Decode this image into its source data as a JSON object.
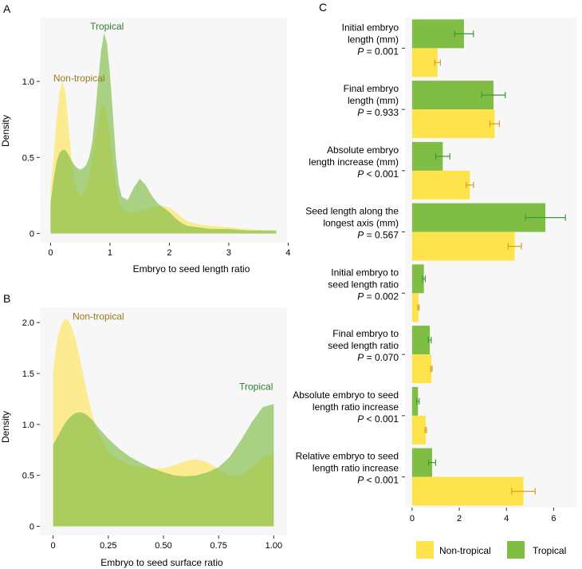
{
  "colors": {
    "non_tropical": "#FFE34D",
    "tropical": "#7FBD45",
    "non_tropical_label": "#9A7A1C",
    "tropical_label": "#2E7D2E",
    "panel_bg": "#F7F7F7",
    "nt_err": "#D4A020",
    "tr_err": "#3C9A3C"
  },
  "chart_data": [
    {
      "panel_label": "A",
      "type": "area",
      "xlabel": "Embryo to seed length ratio",
      "ylabel": "Density",
      "xlim": [
        -0.18,
        3.98
      ],
      "ylim": [
        -0.06,
        1.42
      ],
      "xticks": [
        0,
        1,
        2,
        3,
        4
      ],
      "xtick_labels": [
        "0",
        "1",
        "2",
        "3",
        "4"
      ],
      "yticks": [
        0,
        0.5,
        1.0
      ],
      "ytick_labels": [
        "0",
        "0.5",
        "1.0"
      ],
      "annotations": [
        {
          "text": "Tropical",
          "series": "Tropical",
          "x": 0.95,
          "y": 1.34
        },
        {
          "text": "Non-tropical",
          "series": "Non-tropical",
          "x": 0.48,
          "y": 1.0
        }
      ],
      "series": [
        {
          "name": "Non-tropical",
          "x": [
            0,
            0.05,
            0.1,
            0.15,
            0.2,
            0.25,
            0.3,
            0.35,
            0.4,
            0.45,
            0.5,
            0.55,
            0.6,
            0.65,
            0.7,
            0.75,
            0.8,
            0.85,
            0.9,
            0.95,
            1.0,
            1.05,
            1.1,
            1.15,
            1.2,
            1.3,
            1.4,
            1.5,
            1.6,
            1.7,
            1.8,
            1.9,
            2.0,
            2.1,
            2.2,
            2.3,
            2.5,
            2.7,
            3.0,
            3.3,
            3.6,
            3.8
          ],
          "y": [
            0.3,
            0.5,
            0.75,
            0.93,
            1.0,
            0.93,
            0.72,
            0.5,
            0.36,
            0.28,
            0.25,
            0.26,
            0.3,
            0.38,
            0.5,
            0.62,
            0.75,
            0.83,
            0.85,
            0.8,
            0.65,
            0.48,
            0.32,
            0.22,
            0.17,
            0.14,
            0.14,
            0.15,
            0.16,
            0.17,
            0.18,
            0.18,
            0.17,
            0.14,
            0.11,
            0.08,
            0.06,
            0.05,
            0.04,
            0.03,
            0.02,
            0.01
          ]
        },
        {
          "name": "Tropical",
          "x": [
            0,
            0.05,
            0.1,
            0.15,
            0.2,
            0.25,
            0.3,
            0.35,
            0.4,
            0.45,
            0.5,
            0.55,
            0.6,
            0.65,
            0.7,
            0.75,
            0.8,
            0.85,
            0.9,
            0.95,
            1.0,
            1.05,
            1.1,
            1.15,
            1.2,
            1.3,
            1.4,
            1.5,
            1.6,
            1.7,
            1.8,
            1.9,
            2.0,
            2.1,
            2.2,
            2.3,
            2.5,
            2.7,
            3.0,
            3.3,
            3.6,
            3.8
          ],
          "y": [
            0.2,
            0.35,
            0.47,
            0.53,
            0.55,
            0.55,
            0.52,
            0.48,
            0.45,
            0.43,
            0.42,
            0.43,
            0.45,
            0.5,
            0.6,
            0.78,
            1.0,
            1.2,
            1.32,
            1.25,
            1.05,
            0.78,
            0.5,
            0.32,
            0.24,
            0.22,
            0.3,
            0.36,
            0.32,
            0.25,
            0.2,
            0.17,
            0.14,
            0.1,
            0.07,
            0.05,
            0.04,
            0.03,
            0.03,
            0.02,
            0.02,
            0.02
          ]
        }
      ]
    },
    {
      "panel_label": "B",
      "type": "area",
      "xlabel": "Embryo to seed surface ratio",
      "ylabel": "Density",
      "xlim": [
        -0.06,
        1.06
      ],
      "ylim": [
        -0.09,
        2.15
      ],
      "xticks": [
        0,
        0.25,
        0.5,
        0.75,
        1.0
      ],
      "xtick_labels": [
        "0",
        "0.25",
        "0.50",
        "0.75",
        "1.00"
      ],
      "yticks": [
        0,
        0.5,
        1.0,
        1.5,
        2.0
      ],
      "ytick_labels": [
        "0",
        "0.5",
        "1.0",
        "1.5",
        "2.0"
      ],
      "annotations": [
        {
          "text": "Non-tropical",
          "series": "Non-tropical",
          "x": 0.205,
          "y": 2.03
        },
        {
          "text": "Tropical",
          "series": "Tropical",
          "x": 0.92,
          "y": 1.34
        }
      ],
      "series": [
        {
          "name": "Non-tropical",
          "x": [
            0,
            0.02,
            0.04,
            0.06,
            0.08,
            0.1,
            0.12,
            0.14,
            0.16,
            0.18,
            0.2,
            0.25,
            0.3,
            0.35,
            0.4,
            0.45,
            0.5,
            0.55,
            0.6,
            0.65,
            0.7,
            0.75,
            0.8,
            0.85,
            0.9,
            0.95,
            1.0
          ],
          "y": [
            1.52,
            1.85,
            2.0,
            2.04,
            1.98,
            1.85,
            1.66,
            1.45,
            1.25,
            1.08,
            0.94,
            0.74,
            0.65,
            0.6,
            0.58,
            0.57,
            0.57,
            0.6,
            0.64,
            0.66,
            0.63,
            0.56,
            0.5,
            0.5,
            0.58,
            0.68,
            0.72
          ]
        },
        {
          "name": "Tropical",
          "x": [
            0,
            0.02,
            0.04,
            0.06,
            0.08,
            0.1,
            0.12,
            0.14,
            0.16,
            0.18,
            0.2,
            0.25,
            0.3,
            0.35,
            0.4,
            0.45,
            0.5,
            0.55,
            0.6,
            0.65,
            0.7,
            0.75,
            0.8,
            0.85,
            0.9,
            0.95,
            1.0
          ],
          "y": [
            0.8,
            0.88,
            0.96,
            1.03,
            1.08,
            1.11,
            1.12,
            1.11,
            1.08,
            1.04,
            0.98,
            0.86,
            0.76,
            0.68,
            0.62,
            0.57,
            0.53,
            0.5,
            0.49,
            0.5,
            0.53,
            0.58,
            0.68,
            0.84,
            1.02,
            1.17,
            1.2
          ]
        }
      ]
    },
    {
      "panel_label": "C",
      "type": "bar",
      "orientation": "horizontal",
      "xlim": [
        -0.3,
        7.0
      ],
      "xticks": [
        0,
        2,
        4,
        6
      ],
      "xtick_labels": [
        "0",
        "2",
        "4",
        "6"
      ],
      "categories": [
        {
          "lines": [
            "Initial embryo",
            "length (mm)"
          ],
          "p_label": "P",
          "p_text": " = 0.001"
        },
        {
          "lines": [
            "Final embryo",
            "length (mm)"
          ],
          "p_label": "P",
          "p_text": " = 0.933"
        },
        {
          "lines": [
            "Absolute embryo",
            "length increase (mm)"
          ],
          "p_label": "P",
          "p_text": " < 0.001"
        },
        {
          "lines": [
            "Seed length along the",
            "longest axis (mm)"
          ],
          "p_label": "P",
          "p_text": " = 0.567"
        },
        {
          "lines": [
            "Initial embryo to",
            "seed length ratio"
          ],
          "p_label": "P",
          "p_text": " = 0.002"
        },
        {
          "lines": [
            "Final embryo to",
            "seed length ratio"
          ],
          "p_label": "P",
          "p_text": " = 0.070"
        },
        {
          "lines": [
            "Absolute embryo to seed",
            "length ratio increase"
          ],
          "p_label": "P",
          "p_text": " < 0.001"
        },
        {
          "lines": [
            "Relative embryo to seed",
            "length ratio increase"
          ],
          "p_label": "P",
          "p_text": " < 0.001"
        }
      ],
      "series": [
        {
          "name": "Tropical",
          "values": [
            2.2,
            3.45,
            1.3,
            5.65,
            0.5,
            0.75,
            0.25,
            0.85
          ],
          "errors": [
            0.4,
            0.5,
            0.3,
            0.85,
            0.06,
            0.06,
            0.05,
            0.15
          ]
        },
        {
          "name": "Non-tropical",
          "values": [
            1.08,
            3.5,
            2.45,
            4.35,
            0.27,
            0.82,
            0.58,
            4.72
          ],
          "errors": [
            0.12,
            0.2,
            0.15,
            0.28,
            0.03,
            0.03,
            0.03,
            0.5
          ]
        }
      ],
      "legend": {
        "position": "bottom",
        "items": [
          "Non-tropical",
          "Tropical"
        ]
      }
    }
  ]
}
